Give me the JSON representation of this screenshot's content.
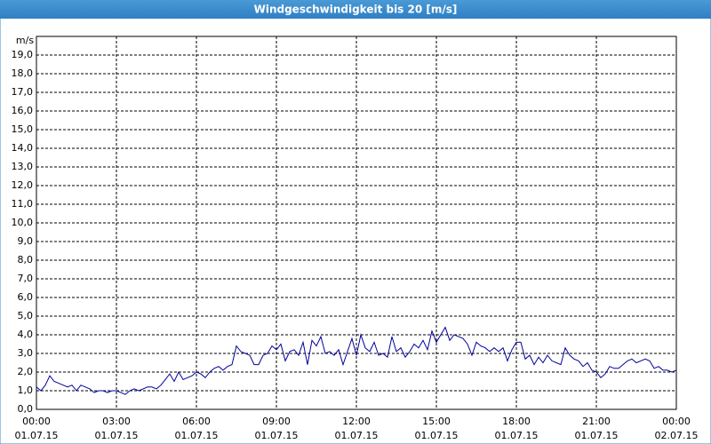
{
  "chart_data": {
    "type": "line",
    "title": "Windgeschwindigkeit bis 20 [m/s]",
    "y_label": "m/s",
    "xlim": [
      0,
      1440
    ],
    "xticks": [
      {
        "value": 0,
        "label": "00:00",
        "date": "01.07.15"
      },
      {
        "value": 180,
        "label": "03:00",
        "date": "01.07.15"
      },
      {
        "value": 360,
        "label": "06:00",
        "date": "01.07.15"
      },
      {
        "value": 540,
        "label": "09:00",
        "date": "01.07.15"
      },
      {
        "value": 720,
        "label": "12:00",
        "date": "01.07.15"
      },
      {
        "value": 900,
        "label": "15:00",
        "date": "01.07.15"
      },
      {
        "value": 1080,
        "label": "18:00",
        "date": "01.07.15"
      },
      {
        "value": 1260,
        "label": "21:00",
        "date": "01.07.15"
      },
      {
        "value": 1440,
        "label": "00:00",
        "date": "02.07.15"
      }
    ],
    "ylim": [
      0,
      20
    ],
    "yticks": [
      {
        "value": 0,
        "label": "0,0"
      },
      {
        "value": 1,
        "label": "1,0"
      },
      {
        "value": 2,
        "label": "2,0"
      },
      {
        "value": 3,
        "label": "3,0"
      },
      {
        "value": 4,
        "label": "4,0"
      },
      {
        "value": 5,
        "label": "5,0"
      },
      {
        "value": 6,
        "label": "6,0"
      },
      {
        "value": 7,
        "label": "7,0"
      },
      {
        "value": 8,
        "label": "8,0"
      },
      {
        "value": 9,
        "label": "9,0"
      },
      {
        "value": 10,
        "label": "10,0"
      },
      {
        "value": 11,
        "label": "11,0"
      },
      {
        "value": 12,
        "label": "12,0"
      },
      {
        "value": 13,
        "label": "13,0"
      },
      {
        "value": 14,
        "label": "14,0"
      },
      {
        "value": 15,
        "label": "15,0"
      },
      {
        "value": 16,
        "label": "16,0"
      },
      {
        "value": 17,
        "label": "17,0"
      },
      {
        "value": 18,
        "label": "18,0"
      },
      {
        "value": 19,
        "label": "19,0"
      }
    ],
    "grid": true,
    "x": [
      0,
      10,
      20,
      30,
      40,
      50,
      60,
      70,
      80,
      90,
      100,
      110,
      120,
      130,
      140,
      150,
      160,
      170,
      180,
      190,
      200,
      210,
      220,
      230,
      240,
      250,
      260,
      270,
      280,
      290,
      300,
      310,
      320,
      330,
      340,
      350,
      360,
      370,
      380,
      390,
      400,
      410,
      420,
      430,
      440,
      450,
      460,
      470,
      480,
      490,
      500,
      510,
      520,
      530,
      540,
      550,
      560,
      570,
      580,
      590,
      600,
      610,
      620,
      630,
      640,
      650,
      660,
      670,
      680,
      690,
      700,
      710,
      720,
      730,
      740,
      750,
      760,
      770,
      780,
      790,
      800,
      810,
      820,
      830,
      840,
      850,
      860,
      870,
      880,
      890,
      900,
      910,
      920,
      930,
      940,
      950,
      960,
      970,
      980,
      990,
      1000,
      1010,
      1020,
      1030,
      1040,
      1050,
      1060,
      1070,
      1080,
      1090,
      1100,
      1110,
      1120,
      1130,
      1140,
      1150,
      1160,
      1170,
      1180,
      1190,
      1200,
      1210,
      1220,
      1230,
      1240,
      1250,
      1260,
      1270,
      1280,
      1290,
      1300,
      1310,
      1320,
      1330,
      1340,
      1350,
      1360,
      1370,
      1380,
      1390,
      1400,
      1410,
      1420,
      1430,
      1440
    ],
    "series": [
      {
        "color": "#000099",
        "values": [
          1.2,
          1.0,
          1.3,
          1.8,
          1.5,
          1.4,
          1.3,
          1.2,
          1.3,
          1.0,
          1.3,
          1.2,
          1.1,
          0.9,
          1.0,
          1.0,
          0.9,
          1.0,
          1.0,
          0.9,
          0.8,
          1.0,
          1.1,
          1.0,
          1.1,
          1.2,
          1.2,
          1.1,
          1.3,
          1.6,
          1.9,
          1.5,
          2.0,
          1.6,
          1.7,
          1.8,
          2.0,
          1.9,
          1.7,
          2.0,
          2.2,
          2.3,
          2.1,
          2.3,
          2.4,
          3.4,
          3.1,
          3.0,
          2.9,
          2.4,
          2.4,
          2.9,
          3.0,
          3.4,
          3.2,
          3.5,
          2.6,
          3.1,
          3.2,
          2.9,
          3.6,
          2.4,
          3.7,
          3.4,
          3.9,
          3.0,
          3.1,
          2.9,
          3.2,
          2.4,
          3.1,
          3.8,
          2.9,
          4.0,
          3.3,
          3.1,
          3.6,
          2.9,
          3.0,
          2.8,
          3.9,
          3.1,
          3.3,
          2.8,
          3.1,
          3.5,
          3.3,
          3.7,
          3.2,
          4.2,
          3.6,
          4.0,
          4.4,
          3.7,
          4.0,
          3.9,
          3.8,
          3.5,
          2.9,
          3.6,
          3.4,
          3.3,
          3.1,
          3.3,
          3.1,
          3.3,
          2.6,
          3.2,
          3.6,
          3.6,
          2.7,
          2.9,
          2.4,
          2.8,
          2.5,
          2.9,
          2.6,
          2.5,
          2.4,
          3.3,
          2.9,
          2.7,
          2.6,
          2.3,
          2.5,
          2.1,
          2.0,
          1.7,
          1.9,
          2.3,
          2.2,
          2.2,
          2.4,
          2.6,
          2.7,
          2.5,
          2.6,
          2.7,
          2.6,
          2.2,
          2.3,
          2.1,
          2.1,
          2.0,
          2.1
        ]
      }
    ]
  }
}
